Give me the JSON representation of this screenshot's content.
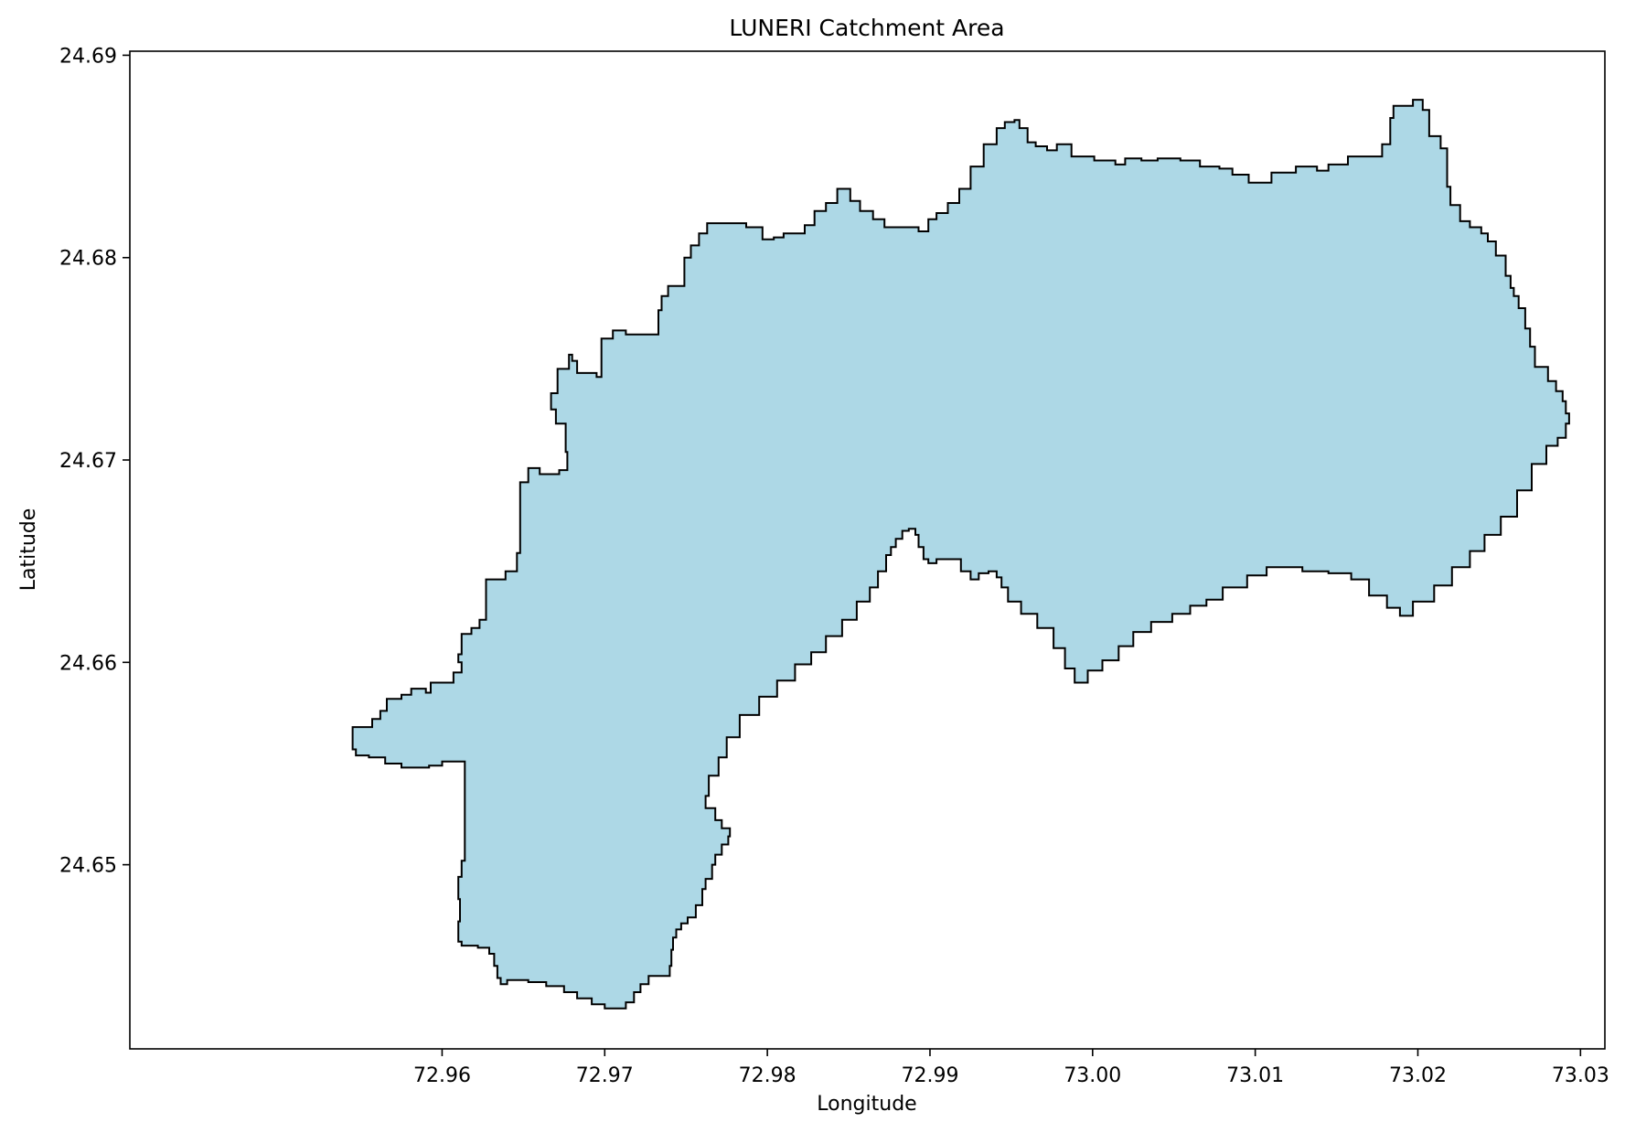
{
  "chart_data": {
    "type": "map",
    "title": "LUNERI Catchment Area",
    "xlabel": "Longitude",
    "ylabel": "Latitude",
    "xlim": [
      72.9408,
      73.0315
    ],
    "ylim": [
      24.6409,
      24.6902
    ],
    "x_ticks": [
      {
        "value": 72.96,
        "label": "72.96"
      },
      {
        "value": 72.97,
        "label": "72.97"
      },
      {
        "value": 72.98,
        "label": "72.98"
      },
      {
        "value": 72.99,
        "label": "72.99"
      },
      {
        "value": 73.0,
        "label": "73.00"
      },
      {
        "value": 73.01,
        "label": "73.01"
      },
      {
        "value": 73.02,
        "label": "73.02"
      },
      {
        "value": 73.03,
        "label": "73.03"
      }
    ],
    "y_ticks": [
      {
        "value": 24.65,
        "label": "24.65"
      },
      {
        "value": 24.66,
        "label": "24.66"
      },
      {
        "value": 24.67,
        "label": "24.67"
      },
      {
        "value": 24.68,
        "label": "24.68"
      },
      {
        "value": 24.69,
        "label": "24.69"
      }
    ],
    "grid": false,
    "legend": "none",
    "colors": {
      "fill": "#add8e6",
      "edge": "#000000"
    },
    "catchment_boundary": [
      [
        72.9545,
        24.6568
      ],
      [
        72.9554,
        24.6568
      ],
      [
        72.9557,
        24.6572
      ],
      [
        72.9562,
        24.6576
      ],
      [
        72.9566,
        24.6582
      ],
      [
        72.9575,
        24.6584
      ],
      [
        72.9581,
        24.6587
      ],
      [
        72.959,
        24.6585
      ],
      [
        72.9593,
        24.659
      ],
      [
        72.96,
        24.659
      ],
      [
        72.9607,
        24.6595
      ],
      [
        72.9612,
        24.66
      ],
      [
        72.961,
        24.6604
      ],
      [
        72.9612,
        24.6614
      ],
      [
        72.9618,
        24.6617
      ],
      [
        72.9623,
        24.6621
      ],
      [
        72.9627,
        24.663
      ],
      [
        72.9627,
        24.6641
      ],
      [
        72.9633,
        24.6641
      ],
      [
        72.9639,
        24.6645
      ],
      [
        72.9646,
        24.6654
      ],
      [
        72.9648,
        24.6689
      ],
      [
        72.9653,
        24.6696
      ],
      [
        72.966,
        24.6693
      ],
      [
        72.9672,
        24.6695
      ],
      [
        72.9677,
        24.6704
      ],
      [
        72.9676,
        24.6718
      ],
      [
        72.967,
        24.6725
      ],
      [
        72.9667,
        24.6733
      ],
      [
        72.9671,
        24.6745
      ],
      [
        72.9678,
        24.6752
      ],
      [
        72.968,
        24.6749
      ],
      [
        72.9683,
        24.6743
      ],
      [
        72.9695,
        24.6741
      ],
      [
        72.9698,
        24.676
      ],
      [
        72.9705,
        24.6764
      ],
      [
        72.9713,
        24.6762
      ],
      [
        72.9723,
        24.6762
      ],
      [
        72.9733,
        24.6774
      ],
      [
        72.9735,
        24.6781
      ],
      [
        72.9739,
        24.6786
      ],
      [
        72.9746,
        24.6786
      ],
      [
        72.9749,
        24.68
      ],
      [
        72.9753,
        24.6806
      ],
      [
        72.9758,
        24.6812
      ],
      [
        72.9763,
        24.6817
      ],
      [
        72.9774,
        24.6817
      ],
      [
        72.9787,
        24.6815
      ],
      [
        72.9797,
        24.6809
      ],
      [
        72.9804,
        24.681
      ],
      [
        72.981,
        24.6812
      ],
      [
        72.9823,
        24.6816
      ],
      [
        72.9829,
        24.6823
      ],
      [
        72.9836,
        24.6827
      ],
      [
        72.9843,
        24.6834
      ],
      [
        72.9851,
        24.6828
      ],
      [
        72.9857,
        24.6823
      ],
      [
        72.9865,
        24.6819
      ],
      [
        72.9872,
        24.6815
      ],
      [
        72.9883,
        24.6815
      ],
      [
        72.9893,
        24.6813
      ],
      [
        72.9899,
        24.6819
      ],
      [
        72.9904,
        24.6822
      ],
      [
        72.9911,
        24.6827
      ],
      [
        72.9918,
        24.6834
      ],
      [
        72.9925,
        24.6845
      ],
      [
        72.9933,
        24.6856
      ],
      [
        72.9941,
        24.6864
      ],
      [
        72.9946,
        24.6867
      ],
      [
        72.9952,
        24.6868
      ],
      [
        72.9955,
        24.6864
      ],
      [
        72.996,
        24.6857
      ],
      [
        72.9965,
        24.6855
      ],
      [
        72.9972,
        24.6853
      ],
      [
        72.9978,
        24.6856
      ],
      [
        72.9987,
        24.685
      ],
      [
        73.0001,
        24.6848
      ],
      [
        73.0014,
        24.6846
      ],
      [
        73.002,
        24.6849
      ],
      [
        73.003,
        24.6848
      ],
      [
        73.004,
        24.6849
      ],
      [
        73.0054,
        24.6848
      ],
      [
        73.0066,
        24.6845
      ],
      [
        73.0078,
        24.6844
      ],
      [
        73.0086,
        24.6841
      ],
      [
        73.0096,
        24.6837
      ],
      [
        73.011,
        24.6842
      ],
      [
        73.0125,
        24.6845
      ],
      [
        73.0138,
        24.6843
      ],
      [
        73.0145,
        24.6846
      ],
      [
        73.0157,
        24.685
      ],
      [
        73.0171,
        24.685
      ],
      [
        73.0178,
        24.6856
      ],
      [
        73.0183,
        24.6869
      ],
      [
        73.0185,
        24.6875
      ],
      [
        73.0197,
        24.6878
      ],
      [
        73.0203,
        24.6873
      ],
      [
        73.0207,
        24.686
      ],
      [
        73.0214,
        24.6854
      ],
      [
        73.0218,
        24.6835
      ],
      [
        73.022,
        24.6826
      ],
      [
        73.0226,
        24.6818
      ],
      [
        73.0232,
        24.6815
      ],
      [
        73.0239,
        24.6812
      ],
      [
        73.0243,
        24.6808
      ],
      [
        73.0248,
        24.6801
      ],
      [
        73.0254,
        24.6791
      ],
      [
        73.0257,
        24.6785
      ],
      [
        73.0259,
        24.6781
      ],
      [
        73.0262,
        24.6775
      ],
      [
        73.0266,
        24.6765
      ],
      [
        73.0269,
        24.6756
      ],
      [
        73.0272,
        24.6746
      ],
      [
        73.028,
        24.6739
      ],
      [
        73.0285,
        24.6734
      ],
      [
        73.0289,
        24.6729
      ],
      [
        73.0291,
        24.6723
      ],
      [
        73.0293,
        24.6718
      ],
      [
        73.0291,
        24.6711
      ],
      [
        73.0286,
        24.6707
      ],
      [
        73.0279,
        24.6698
      ],
      [
        73.027,
        24.6685
      ],
      [
        73.0261,
        24.6672
      ],
      [
        73.0251,
        24.6663
      ],
      [
        73.0241,
        24.6655
      ],
      [
        73.0232,
        24.6647
      ],
      [
        73.0221,
        24.6638
      ],
      [
        73.021,
        24.663
      ],
      [
        73.0197,
        24.6623
      ],
      [
        73.0189,
        24.6627
      ],
      [
        73.0181,
        24.6633
      ],
      [
        73.017,
        24.6641
      ],
      [
        73.0159,
        24.6644
      ],
      [
        73.0145,
        24.6645
      ],
      [
        73.0129,
        24.6647
      ],
      [
        73.0119,
        24.6647
      ],
      [
        73.0107,
        24.6643
      ],
      [
        73.0095,
        24.6637
      ],
      [
        73.008,
        24.6631
      ],
      [
        73.007,
        24.6628
      ],
      [
        73.006,
        24.6624
      ],
      [
        73.0049,
        24.662
      ],
      [
        73.0036,
        24.6615
      ],
      [
        73.0025,
        24.6608
      ],
      [
        73.0016,
        24.6601
      ],
      [
        73.0006,
        24.6596
      ],
      [
        72.9997,
        24.659
      ],
      [
        72.9989,
        24.6597
      ],
      [
        72.9983,
        24.6607
      ],
      [
        72.9976,
        24.6617
      ],
      [
        72.9966,
        24.6624
      ],
      [
        72.9956,
        24.663
      ],
      [
        72.9948,
        24.6637
      ],
      [
        72.9944,
        24.6642
      ],
      [
        72.9941,
        24.6645
      ],
      [
        72.9936,
        24.6644
      ],
      [
        72.993,
        24.6641
      ],
      [
        72.9925,
        24.6645
      ],
      [
        72.9919,
        24.6651
      ],
      [
        72.9913,
        24.6651
      ],
      [
        72.9904,
        24.6649
      ],
      [
        72.9899,
        24.6651
      ],
      [
        72.9896,
        24.6657
      ],
      [
        72.9893,
        24.6663
      ],
      [
        72.9891,
        24.6666
      ],
      [
        72.9887,
        24.6665
      ],
      [
        72.9883,
        24.6661
      ],
      [
        72.9879,
        24.6657
      ],
      [
        72.9876,
        24.6653
      ],
      [
        72.9873,
        24.6645
      ],
      [
        72.9868,
        24.6637
      ],
      [
        72.9863,
        24.663
      ],
      [
        72.9855,
        24.6621
      ],
      [
        72.9846,
        24.6613
      ],
      [
        72.9836,
        24.6605
      ],
      [
        72.9827,
        24.6599
      ],
      [
        72.9817,
        24.6591
      ],
      [
        72.9806,
        24.6583
      ],
      [
        72.9795,
        24.6574
      ],
      [
        72.9783,
        24.6563
      ],
      [
        72.9775,
        24.6553
      ],
      [
        72.977,
        24.6544
      ],
      [
        72.9764,
        24.6534
      ],
      [
        72.9762,
        24.6528
      ],
      [
        72.9768,
        24.6522
      ],
      [
        72.9772,
        24.6518
      ],
      [
        72.9777,
        24.6514
      ],
      [
        72.9776,
        24.651
      ],
      [
        72.9772,
        24.6505
      ],
      [
        72.9768,
        24.65
      ],
      [
        72.9766,
        24.6493
      ],
      [
        72.9762,
        24.6488
      ],
      [
        72.976,
        24.648
      ],
      [
        72.9756,
        24.6474
      ],
      [
        72.9751,
        24.6471
      ],
      [
        72.9747,
        24.6468
      ],
      [
        72.9744,
        24.6464
      ],
      [
        72.9742,
        24.6458
      ],
      [
        72.9741,
        24.645
      ],
      [
        72.974,
        24.6445
      ],
      [
        72.9734,
        24.6445
      ],
      [
        72.9727,
        24.6441
      ],
      [
        72.9722,
        24.6437
      ],
      [
        72.9718,
        24.6432
      ],
      [
        72.9713,
        24.6429
      ],
      [
        72.9706,
        24.6429
      ],
      [
        72.97,
        24.6431
      ],
      [
        72.9692,
        24.6434
      ],
      [
        72.9683,
        24.6437
      ],
      [
        72.9675,
        24.644
      ],
      [
        72.9664,
        24.6442
      ],
      [
        72.9653,
        24.6443
      ],
      [
        72.9645,
        24.6443
      ],
      [
        72.964,
        24.6441
      ],
      [
        72.9636,
        24.6444
      ],
      [
        72.9634,
        24.645
      ],
      [
        72.9632,
        24.6456
      ],
      [
        72.9629,
        24.6459
      ],
      [
        72.9622,
        24.646
      ],
      [
        72.9612,
        24.6462
      ],
      [
        72.961,
        24.6472
      ],
      [
        72.9611,
        24.6483
      ],
      [
        72.961,
        24.6494
      ],
      [
        72.9612,
        24.6502
      ],
      [
        72.9614,
        24.6509
      ],
      [
        72.9614,
        24.6515
      ],
      [
        72.9614,
        24.6524
      ],
      [
        72.9614,
        24.6537
      ],
      [
        72.9614,
        24.6551
      ],
      [
        72.9608,
        24.6551
      ],
      [
        72.96,
        24.6549
      ],
      [
        72.9592,
        24.6548
      ],
      [
        72.9584,
        24.6548
      ],
      [
        72.9575,
        24.655
      ],
      [
        72.9565,
        24.6553
      ],
      [
        72.9555,
        24.6554
      ],
      [
        72.9547,
        24.6557
      ],
      [
        72.9545,
        24.6563
      ]
    ]
  }
}
